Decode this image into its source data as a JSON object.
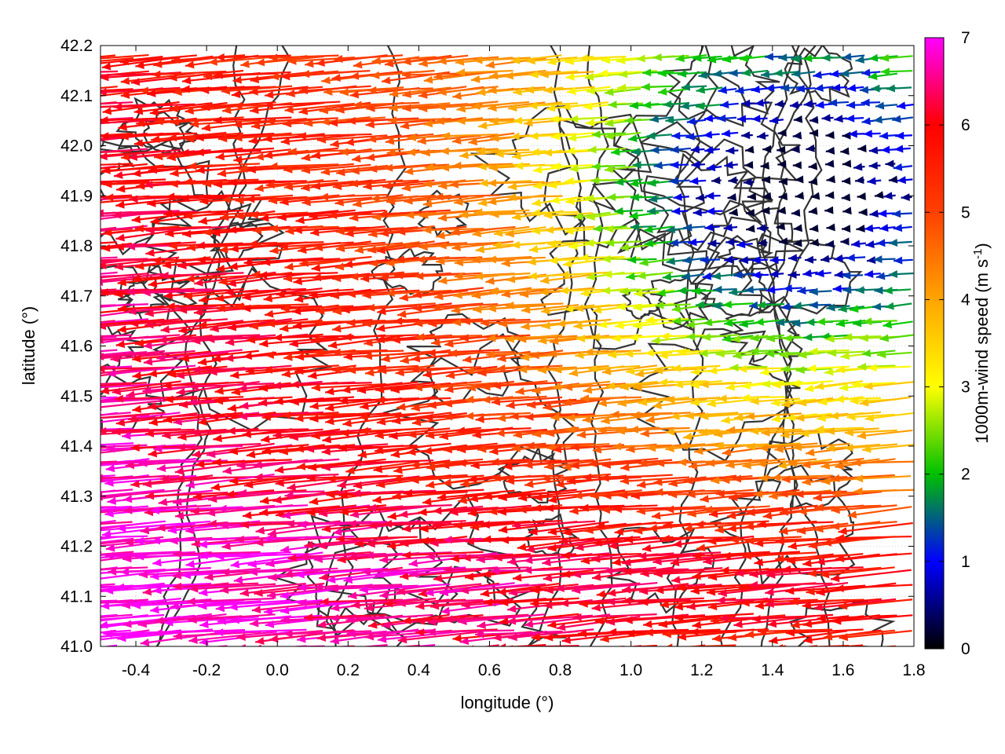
{
  "chart_data": {
    "type": "vector-field",
    "xlabel": "longitude (°)",
    "ylabel": "latitude (°)",
    "xlim": [
      -0.5,
      1.8
    ],
    "ylim": [
      41.0,
      42.2
    ],
    "xticks": [
      -0.4,
      -0.2,
      0.0,
      0.2,
      0.4,
      0.6,
      0.8,
      1.0,
      1.2,
      1.4,
      1.6,
      1.8
    ],
    "xtick_labels": [
      "-0.4",
      "-0.2",
      "0.0",
      "0.2",
      "0.4",
      "0.6",
      "0.8",
      "1.0",
      "1.2",
      "1.4",
      "1.6",
      "1.8"
    ],
    "yticks": [
      41.0,
      41.1,
      41.2,
      41.3,
      41.4,
      41.5,
      41.6,
      41.7,
      41.8,
      41.9,
      42.0,
      42.1,
      42.2
    ],
    "ytick_labels": [
      "41.0",
      "41.1",
      "41.2",
      "41.3",
      "41.4",
      "41.5",
      "41.6",
      "41.7",
      "41.8",
      "41.9",
      "42.0",
      "42.1",
      "42.2"
    ],
    "grid": true,
    "colorbar": {
      "label": "1000m-wind speed (m s",
      "label_superscript": "-1",
      "label_suffix": ")",
      "range": [
        0,
        7
      ],
      "ticks": [
        0,
        1,
        2,
        3,
        4,
        5,
        6,
        7
      ],
      "tick_labels": [
        "0",
        "1",
        "2",
        "3",
        "4",
        "5",
        "6",
        "7"
      ],
      "palette": [
        "#000000",
        "#0000ff",
        "#00ff00",
        "#ffff00",
        "#ffa500",
        "#ff0000",
        "#ff00ff"
      ]
    },
    "vectors": {
      "direction": "westward, slightly north of west",
      "speed_description": "fastest (≥6.5 m/s, magenta) in the southwest; slowest (<2 m/s, blue/teal) in the northeast"
    },
    "contours": {
      "color": "#333333",
      "description": "terrain elevation contours"
    }
  }
}
